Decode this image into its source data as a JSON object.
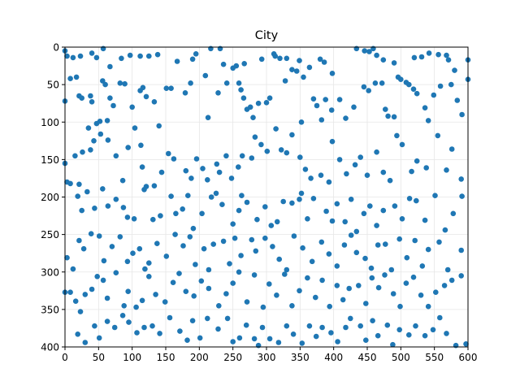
{
  "chart_data": {
    "type": "scatter",
    "title": "City",
    "xlabel": "",
    "ylabel": "",
    "xlim": [
      0,
      600
    ],
    "ylim": [
      400,
      0
    ],
    "y_inverted": true,
    "grid": true,
    "legend": "none",
    "x_ticks": [
      "0",
      "50",
      "100",
      "150",
      "200",
      "250",
      "300",
      "350",
      "400",
      "450",
      "500",
      "550",
      "600"
    ],
    "y_ticks": [
      "0",
      "50",
      "100",
      "150",
      "200",
      "250",
      "300",
      "350",
      "400"
    ],
    "marker_color": "#1f77b4",
    "grid_color": "#e6e6e6",
    "points": [
      [
        0,
        5
      ],
      [
        3,
        12
      ],
      [
        12,
        14
      ],
      [
        23,
        12
      ],
      [
        40,
        8
      ],
      [
        47,
        14
      ],
      [
        57,
        2
      ],
      [
        67,
        26
      ],
      [
        84,
        15
      ],
      [
        97,
        11
      ],
      [
        112,
        12
      ],
      [
        125,
        12
      ],
      [
        167,
        19
      ],
      [
        190,
        16
      ],
      [
        195,
        9
      ],
      [
        217,
        2
      ],
      [
        231,
        2
      ],
      [
        236,
        23
      ],
      [
        250,
        28
      ],
      [
        255,
        25
      ],
      [
        267,
        22
      ],
      [
        293,
        16
      ],
      [
        311,
        9
      ],
      [
        330,
        15
      ],
      [
        349,
        18
      ],
      [
        355,
        40
      ],
      [
        364,
        27
      ],
      [
        380,
        16
      ],
      [
        386,
        20
      ],
      [
        398,
        35
      ],
      [
        434,
        2
      ],
      [
        446,
        5
      ],
      [
        453,
        6
      ],
      [
        459,
        2
      ],
      [
        464,
        11
      ],
      [
        474,
        17
      ],
      [
        490,
        21
      ],
      [
        496,
        40
      ],
      [
        520,
        14
      ],
      [
        531,
        13
      ],
      [
        542,
        8
      ],
      [
        556,
        10
      ],
      [
        568,
        11
      ],
      [
        571,
        17
      ],
      [
        580,
        31
      ],
      [
        600,
        17
      ],
      [
        600,
        43
      ],
      [
        0,
        72
      ],
      [
        8,
        42
      ],
      [
        17,
        40
      ],
      [
        21,
        65
      ],
      [
        25,
        68
      ],
      [
        38,
        65
      ],
      [
        40,
        73
      ],
      [
        47,
        102
      ],
      [
        52,
        99
      ],
      [
        56,
        45
      ],
      [
        60,
        50
      ],
      [
        63,
        98
      ],
      [
        67,
        68
      ],
      [
        72,
        78
      ],
      [
        82,
        48
      ],
      [
        89,
        49
      ],
      [
        100,
        80
      ],
      [
        112,
        58
      ],
      [
        116,
        54
      ],
      [
        121,
        66
      ],
      [
        133,
        73
      ],
      [
        138,
        10
      ],
      [
        140,
        105
      ],
      [
        151,
        55
      ],
      [
        158,
        55
      ],
      [
        179,
        61
      ],
      [
        187,
        48
      ],
      [
        209,
        38
      ],
      [
        213,
        94
      ],
      [
        228,
        61
      ],
      [
        241,
        48
      ],
      [
        259,
        48
      ],
      [
        262,
        57
      ],
      [
        266,
        68
      ],
      [
        271,
        83
      ],
      [
        276,
        80
      ],
      [
        280,
        94
      ],
      [
        288,
        75
      ],
      [
        300,
        74
      ],
      [
        305,
        68
      ],
      [
        313,
        12
      ],
      [
        320,
        15
      ],
      [
        328,
        45
      ],
      [
        338,
        30
      ],
      [
        345,
        32
      ],
      [
        352,
        100
      ],
      [
        370,
        69
      ],
      [
        375,
        78
      ],
      [
        382,
        97
      ],
      [
        388,
        70
      ],
      [
        397,
        84
      ],
      [
        409,
        70
      ],
      [
        418,
        95
      ],
      [
        430,
        80
      ],
      [
        445,
        53
      ],
      [
        452,
        58
      ],
      [
        462,
        48
      ],
      [
        472,
        48
      ],
      [
        477,
        83
      ],
      [
        481,
        92
      ],
      [
        490,
        93
      ],
      [
        500,
        43
      ],
      [
        508,
        47
      ],
      [
        512,
        50
      ],
      [
        519,
        56
      ],
      [
        524,
        62
      ],
      [
        536,
        81
      ],
      [
        541,
        98
      ],
      [
        549,
        64
      ],
      [
        559,
        52
      ],
      [
        575,
        50
      ],
      [
        584,
        71
      ],
      [
        591,
        90
      ],
      [
        0,
        155
      ],
      [
        3,
        180
      ],
      [
        15,
        145
      ],
      [
        21,
        183
      ],
      [
        26,
        140
      ],
      [
        35,
        108
      ],
      [
        38,
        137
      ],
      [
        43,
        125
      ],
      [
        53,
        116
      ],
      [
        64,
        124
      ],
      [
        76,
        145
      ],
      [
        86,
        178
      ],
      [
        94,
        134
      ],
      [
        104,
        108
      ],
      [
        113,
        131
      ],
      [
        115,
        160
      ],
      [
        121,
        186
      ],
      [
        133,
        185
      ],
      [
        144,
        167
      ],
      [
        154,
        142
      ],
      [
        162,
        149
      ],
      [
        180,
        165
      ],
      [
        188,
        175
      ],
      [
        196,
        149
      ],
      [
        205,
        162
      ],
      [
        212,
        177
      ],
      [
        226,
        156
      ],
      [
        230,
        167
      ],
      [
        240,
        145
      ],
      [
        248,
        175
      ],
      [
        258,
        160
      ],
      [
        264,
        145
      ],
      [
        278,
        148
      ],
      [
        283,
        120
      ],
      [
        292,
        130
      ],
      [
        301,
        139
      ],
      [
        314,
        109
      ],
      [
        322,
        137
      ],
      [
        330,
        141
      ],
      [
        338,
        117
      ],
      [
        350,
        147
      ],
      [
        358,
        163
      ],
      [
        366,
        175
      ],
      [
        381,
        171
      ],
      [
        393,
        180
      ],
      [
        398,
        126
      ],
      [
        409,
        150
      ],
      [
        419,
        169
      ],
      [
        432,
        157
      ],
      [
        440,
        147
      ],
      [
        450,
        171
      ],
      [
        464,
        140
      ],
      [
        474,
        167
      ],
      [
        484,
        178
      ],
      [
        494,
        118
      ],
      [
        502,
        130
      ],
      [
        516,
        166
      ],
      [
        524,
        152
      ],
      [
        538,
        161
      ],
      [
        555,
        118
      ],
      [
        568,
        164
      ],
      [
        576,
        136
      ],
      [
        590,
        176
      ],
      [
        8,
        182
      ],
      [
        19,
        199
      ],
      [
        25,
        218
      ],
      [
        33,
        193
      ],
      [
        44,
        215
      ],
      [
        56,
        189
      ],
      [
        64,
        212
      ],
      [
        76,
        203
      ],
      [
        87,
        214
      ],
      [
        93,
        227
      ],
      [
        103,
        229
      ],
      [
        118,
        190
      ],
      [
        131,
        230
      ],
      [
        142,
        225
      ],
      [
        158,
        199
      ],
      [
        165,
        222
      ],
      [
        175,
        216
      ],
      [
        183,
        198
      ],
      [
        191,
        242
      ],
      [
        204,
        222
      ],
      [
        218,
        200
      ],
      [
        225,
        195
      ],
      [
        234,
        210
      ],
      [
        250,
        236
      ],
      [
        259,
        218
      ],
      [
        263,
        198
      ],
      [
        271,
        207
      ],
      [
        286,
        230
      ],
      [
        298,
        213
      ],
      [
        307,
        238
      ],
      [
        316,
        233
      ],
      [
        325,
        206
      ],
      [
        338,
        208
      ],
      [
        349,
        203
      ],
      [
        352,
        195
      ],
      [
        361,
        229
      ],
      [
        370,
        202
      ],
      [
        389,
        219
      ],
      [
        398,
        232
      ],
      [
        405,
        209
      ],
      [
        417,
        233
      ],
      [
        426,
        203
      ],
      [
        434,
        246
      ],
      [
        445,
        222
      ],
      [
        454,
        212
      ],
      [
        464,
        238
      ],
      [
        474,
        218
      ],
      [
        491,
        212
      ],
      [
        502,
        229
      ],
      [
        513,
        202
      ],
      [
        523,
        205
      ],
      [
        536,
        231
      ],
      [
        551,
        198
      ],
      [
        566,
        244
      ],
      [
        578,
        222
      ],
      [
        591,
        199
      ],
      [
        3,
        281
      ],
      [
        12,
        296
      ],
      [
        21,
        258
      ],
      [
        28,
        269
      ],
      [
        39,
        249
      ],
      [
        51,
        252
      ],
      [
        58,
        285
      ],
      [
        70,
        266
      ],
      [
        82,
        253
      ],
      [
        93,
        286
      ],
      [
        101,
        275
      ],
      [
        111,
        269
      ],
      [
        119,
        296
      ],
      [
        125,
        288
      ],
      [
        137,
        262
      ],
      [
        151,
        279
      ],
      [
        164,
        250
      ],
      [
        176,
        265
      ],
      [
        186,
        253
      ],
      [
        194,
        290
      ],
      [
        207,
        269
      ],
      [
        214,
        297
      ],
      [
        221,
        263
      ],
      [
        236,
        259
      ],
      [
        245,
        289
      ],
      [
        253,
        255
      ],
      [
        262,
        278
      ],
      [
        278,
        257
      ],
      [
        284,
        272
      ],
      [
        298,
        255
      ],
      [
        309,
        266
      ],
      [
        319,
        283
      ],
      [
        330,
        297
      ],
      [
        341,
        252
      ],
      [
        354,
        268
      ],
      [
        368,
        286
      ],
      [
        382,
        260
      ],
      [
        393,
        276
      ],
      [
        405,
        292
      ],
      [
        416,
        264
      ],
      [
        426,
        251
      ],
      [
        434,
        274
      ],
      [
        447,
        282
      ],
      [
        456,
        295
      ],
      [
        466,
        264
      ],
      [
        477,
        263
      ],
      [
        486,
        297
      ],
      [
        498,
        256
      ],
      [
        509,
        281
      ],
      [
        521,
        258
      ],
      [
        532,
        292
      ],
      [
        541,
        270
      ],
      [
        557,
        260
      ],
      [
        570,
        297
      ],
      [
        590,
        271
      ],
      [
        0,
        327
      ],
      [
        8,
        327
      ],
      [
        16,
        339
      ],
      [
        23,
        353
      ],
      [
        30,
        330
      ],
      [
        40,
        323
      ],
      [
        48,
        306
      ],
      [
        57,
        311
      ],
      [
        63,
        335
      ],
      [
        76,
        301
      ],
      [
        88,
        345
      ],
      [
        94,
        326
      ],
      [
        106,
        347
      ],
      [
        115,
        338
      ],
      [
        125,
        306
      ],
      [
        135,
        330
      ],
      [
        149,
        340
      ],
      [
        161,
        314
      ],
      [
        170,
        302
      ],
      [
        180,
        326
      ],
      [
        192,
        332
      ],
      [
        203,
        312
      ],
      [
        214,
        322
      ],
      [
        229,
        345
      ],
      [
        240,
        329
      ],
      [
        250,
        315
      ],
      [
        259,
        300
      ],
      [
        271,
        340
      ],
      [
        282,
        304
      ],
      [
        295,
        347
      ],
      [
        304,
        316
      ],
      [
        315,
        331
      ],
      [
        327,
        303
      ],
      [
        338,
        345
      ],
      [
        349,
        325
      ],
      [
        361,
        308
      ],
      [
        373,
        334
      ],
      [
        383,
        311
      ],
      [
        394,
        346
      ],
      [
        405,
        318
      ],
      [
        414,
        337
      ],
      [
        423,
        322
      ],
      [
        437,
        318
      ],
      [
        448,
        342
      ],
      [
        457,
        308
      ],
      [
        467,
        321
      ],
      [
        476,
        304
      ],
      [
        489,
        329
      ],
      [
        499,
        346
      ],
      [
        508,
        315
      ],
      [
        519,
        307
      ],
      [
        530,
        331
      ],
      [
        541,
        346
      ],
      [
        552,
        327
      ],
      [
        565,
        318
      ],
      [
        576,
        311
      ],
      [
        590,
        305
      ],
      [
        19,
        383
      ],
      [
        30,
        394
      ],
      [
        44,
        372
      ],
      [
        51,
        388
      ],
      [
        63,
        366
      ],
      [
        74,
        374
      ],
      [
        86,
        358
      ],
      [
        95,
        367
      ],
      [
        107,
        381
      ],
      [
        118,
        374
      ],
      [
        130,
        372
      ],
      [
        141,
        382
      ],
      [
        156,
        361
      ],
      [
        171,
        379
      ],
      [
        182,
        391
      ],
      [
        190,
        365
      ],
      [
        201,
        388
      ],
      [
        212,
        362
      ],
      [
        228,
        376
      ],
      [
        242,
        362
      ],
      [
        250,
        393
      ],
      [
        260,
        388
      ],
      [
        270,
        371
      ],
      [
        282,
        389
      ],
      [
        288,
        398
      ],
      [
        294,
        374
      ],
      [
        305,
        389
      ],
      [
        318,
        394
      ],
      [
        330,
        372
      ],
      [
        340,
        383
      ],
      [
        353,
        395
      ],
      [
        364,
        372
      ],
      [
        374,
        386
      ],
      [
        383,
        374
      ],
      [
        396,
        381
      ],
      [
        406,
        393
      ],
      [
        418,
        374
      ],
      [
        425,
        362
      ],
      [
        440,
        372
      ],
      [
        448,
        391
      ],
      [
        458,
        365
      ],
      [
        466,
        385
      ],
      [
        480,
        371
      ],
      [
        488,
        397
      ],
      [
        498,
        377
      ],
      [
        512,
        384
      ],
      [
        522,
        372
      ],
      [
        536,
        385
      ],
      [
        548,
        377
      ],
      [
        558,
        361
      ],
      [
        568,
        382
      ],
      [
        582,
        398
      ],
      [
        597,
        396
      ]
    ]
  }
}
